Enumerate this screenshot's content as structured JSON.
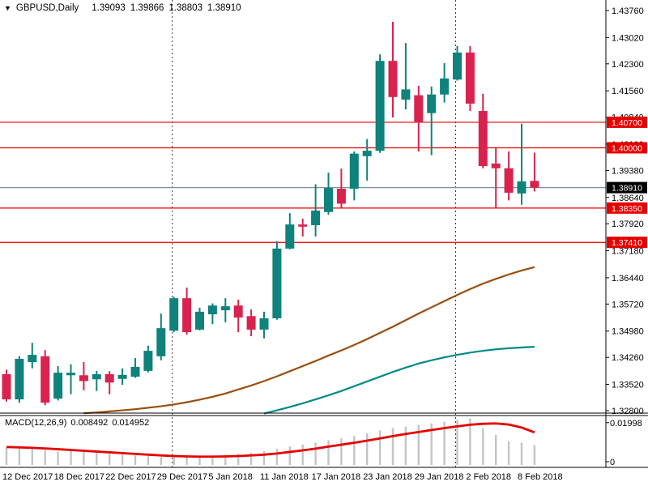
{
  "header": {
    "symbol": "GBPUSD,Daily",
    "open": "1.39093",
    "high": "1.39866",
    "low": "1.38803",
    "close": "1.38910"
  },
  "chart_data": {
    "type": "candlestick",
    "title": "GBPUSD,Daily",
    "timeframe": "Daily",
    "grid": false,
    "y_axis_side": "right",
    "y_range": {
      "top": 1.4376,
      "bottom": 1.328
    },
    "y_ticks": [
      "1.43760",
      "1.43020",
      "1.42300",
      "1.41560",
      "1.40840",
      "1.40100",
      "1.39380",
      "1.38640",
      "1.37920",
      "1.37180",
      "1.36440",
      "1.35720",
      "1.34980",
      "1.34260",
      "1.33520",
      "1.32800"
    ],
    "x_labels": [
      {
        "label": "12 Dec 2017",
        "index": 0
      },
      {
        "label": "18 Dec 2017",
        "index": 4
      },
      {
        "label": "22 Dec 2017",
        "index": 8
      },
      {
        "label": "29 Dec 2017",
        "index": 12
      },
      {
        "label": "5 Jan 2018",
        "index": 16
      },
      {
        "label": "11 Jan 2018",
        "index": 20
      },
      {
        "label": "17 Jan 2018",
        "index": 24
      },
      {
        "label": "23 Jan 2018",
        "index": 28
      },
      {
        "label": "29 Jan 2018",
        "index": 32
      },
      {
        "label": "2 Feb 2018",
        "index": 36
      },
      {
        "label": "8 Feb 2018",
        "index": 40
      }
    ],
    "month_separator_indices": [
      13,
      35
    ],
    "candles_ohlc": [
      [
        1.338,
        1.3392,
        1.3305,
        1.3311
      ],
      [
        1.3311,
        1.3429,
        1.3302,
        1.3422
      ],
      [
        1.3413,
        1.3466,
        1.3396,
        1.3433
      ],
      [
        1.3429,
        1.3446,
        1.3295,
        1.3302
      ],
      [
        1.3313,
        1.3402,
        1.3308,
        1.3384
      ],
      [
        1.3377,
        1.3407,
        1.3325,
        1.3384
      ],
      [
        1.3377,
        1.3413,
        1.3336,
        1.3361
      ],
      [
        1.3366,
        1.3389,
        1.3334,
        1.338
      ],
      [
        1.338,
        1.3388,
        1.3325,
        1.3357
      ],
      [
        1.3367,
        1.3396,
        1.3351,
        1.3378
      ],
      [
        1.3373,
        1.3424,
        1.337,
        1.34
      ],
      [
        1.3389,
        1.3458,
        1.3385,
        1.3444
      ],
      [
        1.3429,
        1.3546,
        1.3418,
        1.3506
      ],
      [
        1.3499,
        1.3592,
        1.3495,
        1.3588
      ],
      [
        1.3588,
        1.3617,
        1.3488,
        1.3495
      ],
      [
        1.3502,
        1.3562,
        1.35,
        1.3551
      ],
      [
        1.3544,
        1.3574,
        1.3517,
        1.3568
      ],
      [
        1.3555,
        1.3588,
        1.3522,
        1.3566
      ],
      [
        1.3568,
        1.3584,
        1.3495,
        1.3535
      ],
      [
        1.3539,
        1.3557,
        1.3484,
        1.3502
      ],
      [
        1.3502,
        1.3551,
        1.3478,
        1.3533
      ],
      [
        1.3533,
        1.3744,
        1.3529,
        1.3724
      ],
      [
        1.3724,
        1.3821,
        1.3722,
        1.379
      ],
      [
        1.379,
        1.3806,
        1.3757,
        1.3784
      ],
      [
        1.3788,
        1.39,
        1.3757,
        1.3828
      ],
      [
        1.3824,
        1.3932,
        1.3817,
        1.389
      ],
      [
        1.3888,
        1.3943,
        1.3835,
        1.3847
      ],
      [
        1.3888,
        1.399,
        1.3856,
        1.3984
      ],
      [
        1.3977,
        1.4024,
        1.391,
        1.3992
      ],
      [
        1.3992,
        1.4256,
        1.3986,
        1.4238
      ],
      [
        1.4238,
        1.4345,
        1.4083,
        1.4139
      ],
      [
        1.4132,
        1.4287,
        1.4105,
        1.416
      ],
      [
        1.4144,
        1.417,
        1.399,
        1.4069
      ],
      [
        1.4095,
        1.4168,
        1.398,
        1.4146
      ],
      [
        1.4146,
        1.4232,
        1.4124,
        1.419
      ],
      [
        1.4187,
        1.4279,
        1.4184,
        1.4261
      ],
      [
        1.4261,
        1.4279,
        1.4101,
        1.4121
      ],
      [
        1.4101,
        1.4148,
        1.3944,
        1.395
      ],
      [
        1.3957,
        1.4002,
        1.3836,
        1.3944
      ],
      [
        1.3944,
        1.399,
        1.3856,
        1.3877
      ],
      [
        1.3875,
        1.4066,
        1.3844,
        1.3908
      ],
      [
        1.39093,
        1.39866,
        1.38803,
        1.3891
      ]
    ],
    "moving_averages": [
      {
        "name": "ma-slow-brown",
        "color": "#9a4e0e",
        "from_index": 6,
        "values": [
          1.3273,
          1.3275,
          1.3278,
          1.3281,
          1.3284,
          1.3288,
          1.3292,
          1.3297,
          1.3303,
          1.331,
          1.3318,
          1.3327,
          1.3338,
          1.3349,
          1.3361,
          1.3374,
          1.3388,
          1.3402,
          1.3416,
          1.3431,
          1.3445,
          1.346,
          1.3476,
          1.3493,
          1.351,
          1.3528,
          1.3546,
          1.3563,
          1.358,
          1.3597,
          1.3613,
          1.3628,
          1.3641,
          1.3653,
          1.3664,
          1.3673
        ]
      },
      {
        "name": "ma-fast-teal",
        "color": "#008b84",
        "from_index": 20,
        "values": [
          1.3272,
          1.3281,
          1.329,
          1.33,
          1.3311,
          1.3322,
          1.3334,
          1.3347,
          1.336,
          1.3373,
          1.3386,
          1.3398,
          1.3409,
          1.3418,
          1.3426,
          1.3433,
          1.3439,
          1.3444,
          1.3448,
          1.3451,
          1.3453,
          1.3455
        ]
      }
    ],
    "horizontal_levels": [
      {
        "price": 1.407,
        "label": "1.40700"
      },
      {
        "price": 1.4,
        "label": "1.40000"
      },
      {
        "price": 1.3835,
        "label": "1.38350"
      },
      {
        "price": 1.3741,
        "label": "1.37410"
      }
    ],
    "current_price": {
      "price": 1.3891,
      "label": "1.38910"
    },
    "macd": {
      "label": "MACD(12,26,9)",
      "main_value": "0.008492",
      "signal_value": "0.014952",
      "y_ticks": [
        "0.01998",
        "0"
      ],
      "y_max": 0.0228,
      "histogram": [
        0.007,
        0.0068,
        0.0072,
        0.006,
        0.0052,
        0.0056,
        0.005,
        0.0045,
        0.004,
        0.0036,
        0.0032,
        0.0028,
        0.0024,
        0.0022,
        0.0024,
        0.0028,
        0.0032,
        0.0036,
        0.004,
        0.0046,
        0.0054,
        0.0066,
        0.0078,
        0.0088,
        0.0098,
        0.011,
        0.012,
        0.0132,
        0.0145,
        0.016,
        0.0172,
        0.018,
        0.0188,
        0.0196,
        0.0205,
        0.0215,
        0.0222,
        0.017,
        0.0137,
        0.0105,
        0.0098,
        0.0085
      ],
      "signal": [
        0.0075,
        0.0073,
        0.0071,
        0.0068,
        0.0064,
        0.006,
        0.0056,
        0.0052,
        0.0048,
        0.0044,
        0.004,
        0.0036,
        0.0032,
        0.0029,
        0.0027,
        0.0026,
        0.0026,
        0.0027,
        0.0029,
        0.0032,
        0.0036,
        0.0042,
        0.005,
        0.0058,
        0.0067,
        0.0077,
        0.0087,
        0.0097,
        0.0108,
        0.0119,
        0.0131,
        0.0142,
        0.0152,
        0.0162,
        0.0172,
        0.0181,
        0.0189,
        0.0194,
        0.0196,
        0.019,
        0.0175,
        0.015
      ]
    },
    "colors": {
      "bull": "#0f827c",
      "bear": "#d9234e",
      "level_line": "#e60000",
      "current_line": "#7f909e",
      "level_tag_bg": "#e60000",
      "current_tag_bg": "#000000",
      "tag_text": "#ffffff",
      "histogram": "#c4c4c4",
      "signal_line": "#e60000",
      "separator": "#3a3a3a",
      "axis_text": "#000000",
      "border": "#000000"
    }
  }
}
